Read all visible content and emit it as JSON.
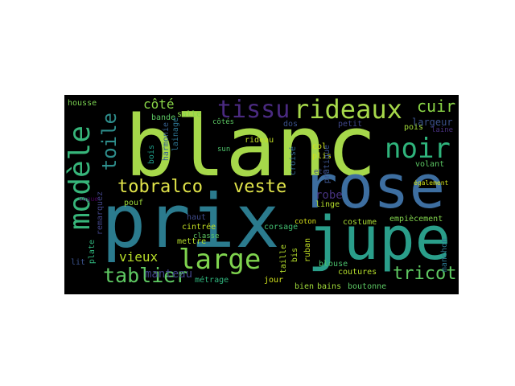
{
  "wordcloud": {
    "background": "#000000",
    "words": [
      {
        "text": "blanc",
        "color": "#a6d84a",
        "orientation": "horizontal"
      },
      {
        "text": "prix",
        "color": "#2b7b8e",
        "orientation": "horizontal"
      },
      {
        "text": "rose",
        "color": "#3d6ea0",
        "orientation": "horizontal"
      },
      {
        "text": "jupe",
        "color": "#2a9e8a",
        "orientation": "horizontal"
      },
      {
        "text": "rideaux",
        "color": "#a6d84a",
        "orientation": "horizontal"
      },
      {
        "text": "tissu",
        "color": "#4a2a80",
        "orientation": "horizontal"
      },
      {
        "text": "noir",
        "color": "#2fb47c",
        "orientation": "horizontal"
      },
      {
        "text": "modèle",
        "color": "#37b57a",
        "orientation": "vertical"
      },
      {
        "text": "large",
        "color": "#7fd34e",
        "orientation": "horizontal"
      },
      {
        "text": "tablier",
        "color": "#5ec962",
        "orientation": "horizontal"
      },
      {
        "text": "tobralco",
        "color": "#e1e44a",
        "orientation": "horizontal"
      },
      {
        "text": "veste",
        "color": "#e1e44a",
        "orientation": "horizontal"
      },
      {
        "text": "tricot",
        "color": "#5ec962",
        "orientation": "horizontal"
      },
      {
        "text": "toile",
        "color": "#2e8e8c",
        "orientation": "vertical"
      },
      {
        "text": "cuir",
        "color": "#8ad546",
        "orientation": "horizontal"
      },
      {
        "text": "vieux",
        "color": "#b8de29",
        "orientation": "horizontal"
      },
      {
        "text": "côté",
        "color": "#89d548",
        "orientation": "horizontal"
      },
      {
        "text": "manteau",
        "color": "#414487",
        "orientation": "horizontal"
      },
      {
        "text": "largeur",
        "color": "#3b528b",
        "orientation": "horizontal"
      },
      {
        "text": "robe",
        "color": "#46327e",
        "orientation": "horizontal"
      },
      {
        "text": "housse",
        "color": "#7ad151",
        "orientation": "horizontal"
      },
      {
        "text": "bande",
        "color": "#5cc863",
        "orientation": "horizontal"
      },
      {
        "text": "salle",
        "color": "#86d549",
        "orientation": "horizontal"
      },
      {
        "text": "côtés",
        "color": "#5cc863",
        "orientation": "horizontal"
      },
      {
        "text": "dos",
        "color": "#3b528b",
        "orientation": "horizontal"
      },
      {
        "text": "petit",
        "color": "#3f4788",
        "orientation": "horizontal"
      },
      {
        "text": "pois",
        "color": "#a0da39",
        "orientation": "horizontal"
      },
      {
        "text": "laine",
        "color": "#472f7d",
        "orientation": "horizontal"
      },
      {
        "text": "rideau",
        "color": "#c2df23",
        "orientation": "horizontal"
      },
      {
        "text": "sun",
        "color": "#4ec36b",
        "orientation": "horizontal"
      },
      {
        "text": "col",
        "color": "#d0e11c",
        "orientation": "horizontal"
      },
      {
        "text": "croisé",
        "color": "#31688e",
        "orientation": "vertical"
      },
      {
        "text": "plis",
        "color": "#cde11d",
        "orientation": "horizontal"
      },
      {
        "text": "volant",
        "color": "#5cc863",
        "orientation": "horizontal"
      },
      {
        "text": "haut",
        "color": "#3e4a89",
        "orientation": "horizontal"
      },
      {
        "text": "pouf",
        "color": "#9dd93b",
        "orientation": "horizontal"
      },
      {
        "text": "cintrée",
        "color": "#c2df23",
        "orientation": "horizontal"
      },
      {
        "text": "classe",
        "color": "#5ec962",
        "orientation": "horizontal"
      },
      {
        "text": "mettre",
        "color": "#b5de2b",
        "orientation": "horizontal"
      },
      {
        "text": "corsage",
        "color": "#43bf71",
        "orientation": "horizontal"
      },
      {
        "text": "coton",
        "color": "#d8e219",
        "orientation": "horizontal"
      },
      {
        "text": "linge",
        "color": "#b5de2b",
        "orientation": "horizontal"
      },
      {
        "text": "costume",
        "color": "#a8db34",
        "orientation": "horizontal"
      },
      {
        "text": "empiècement",
        "color": "#81d34d",
        "orientation": "horizontal"
      },
      {
        "text": "métrage",
        "color": "#2fb47c",
        "orientation": "horizontal"
      },
      {
        "text": "jour",
        "color": "#d0e11c",
        "orientation": "horizontal"
      },
      {
        "text": "taille",
        "color": "#b5de2b",
        "orientation": "vertical"
      },
      {
        "text": "bis",
        "color": "#b5de2b",
        "orientation": "vertical"
      },
      {
        "text": "ruban",
        "color": "#c2df23",
        "orientation": "vertical"
      },
      {
        "text": "blouse",
        "color": "#4ac16d",
        "orientation": "horizontal"
      },
      {
        "text": "coutures",
        "color": "#b5de2b",
        "orientation": "horizontal"
      },
      {
        "text": "bien",
        "color": "#a0da39",
        "orientation": "horizontal"
      },
      {
        "text": "bains",
        "color": "#a0da39",
        "orientation": "horizontal"
      },
      {
        "text": "boutonne",
        "color": "#5cc863",
        "orientation": "horizontal"
      },
      {
        "text": "manchon",
        "color": "#2a788e",
        "orientation": "vertical"
      },
      {
        "text": "plate",
        "color": "#2fb47c",
        "orientation": "vertical"
      },
      {
        "text": "lit",
        "color": "#3b528b",
        "orientation": "horizontal"
      },
      {
        "text": "remarquez",
        "color": "#414487",
        "orientation": "vertical"
      },
      {
        "text": "harmonie",
        "color": "#355f8d",
        "orientation": "vertical"
      },
      {
        "text": "lainage",
        "color": "#2c728e",
        "orientation": "vertical"
      },
      {
        "text": "bois",
        "color": "#1f9e89",
        "orientation": "vertical"
      },
      {
        "text": "etc",
        "color": "#3e4a89",
        "orientation": "horizontal"
      },
      {
        "text": "pratique",
        "color": "#3b528b",
        "orientation": "vertical"
      },
      {
        "text": "également",
        "color": "#d0e11c",
        "orientation": "horizontal"
      },
      {
        "text": "vogue",
        "color": "#440154",
        "orientation": "horizontal"
      }
    ]
  }
}
